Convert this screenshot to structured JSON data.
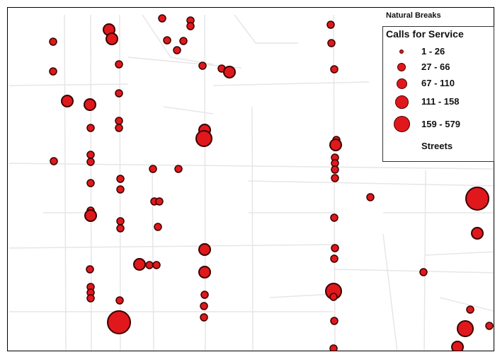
{
  "legend": {
    "title": "Natural Breaks",
    "subtitle": "Calls for Service",
    "classes": [
      {
        "label": "1 - 26"
      },
      {
        "label": "27 - 66"
      },
      {
        "label": "67 - 110"
      },
      {
        "label": "111 - 158"
      },
      {
        "label": "159 - 579"
      }
    ],
    "streets_label": "Streets"
  },
  "colors": {
    "point_fill": "#e0181c",
    "point_stroke": "#3a0000",
    "street": "#e6e6e6",
    "frame": "#000000"
  }
}
